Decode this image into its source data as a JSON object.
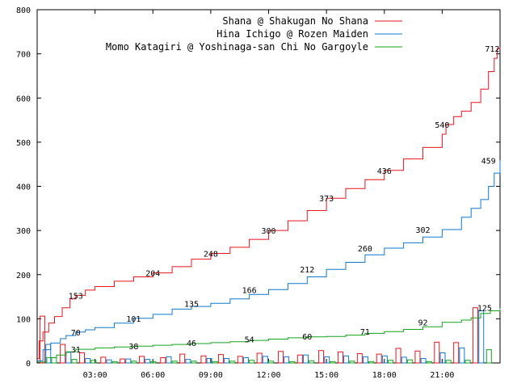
{
  "chart_data": {
    "type": "line",
    "title": "",
    "xlabel": "",
    "ylabel": "",
    "ylim": [
      0,
      800
    ],
    "xlim": [
      0,
      24
    ],
    "grid": false,
    "legend_position": "top-right",
    "yticks": [
      0,
      100,
      200,
      300,
      400,
      500,
      600,
      700,
      800
    ],
    "xticks": [
      {
        "x": 3,
        "label": "03:00"
      },
      {
        "x": 6,
        "label": "06:00"
      },
      {
        "x": 9,
        "label": "09:00"
      },
      {
        "x": 12,
        "label": "12:00"
      },
      {
        "x": 15,
        "label": "15:00"
      },
      {
        "x": 18,
        "label": "18:00"
      },
      {
        "x": 21,
        "label": "21:00"
      }
    ],
    "series": [
      {
        "name": "Shana @ Shakugan No Shana",
        "color": "#e8151c",
        "points": [
          [
            0,
            10
          ],
          [
            0.1,
            50
          ],
          [
            0.3,
            70
          ],
          [
            0.6,
            90
          ],
          [
            0.9,
            105
          ],
          [
            1.3,
            125
          ],
          [
            1.7,
            145
          ],
          [
            2,
            153
          ],
          [
            2.5,
            165
          ],
          [
            3,
            173
          ],
          [
            4,
            185
          ],
          [
            5,
            195
          ],
          [
            6,
            204
          ],
          [
            7,
            218
          ],
          [
            8,
            235
          ],
          [
            9,
            248
          ],
          [
            10,
            262
          ],
          [
            11,
            280
          ],
          [
            12,
            300
          ],
          [
            13,
            322
          ],
          [
            14,
            345
          ],
          [
            15,
            373
          ],
          [
            16,
            395
          ],
          [
            17,
            415
          ],
          [
            18,
            436
          ],
          [
            19,
            462
          ],
          [
            20,
            488
          ],
          [
            21,
            518
          ],
          [
            21.2,
            540
          ],
          [
            21.6,
            558
          ],
          [
            22,
            570
          ],
          [
            22.5,
            590
          ],
          [
            23,
            620
          ],
          [
            23.4,
            660
          ],
          [
            23.7,
            690
          ],
          [
            23.85,
            712
          ],
          [
            24,
            715
          ]
        ],
        "labels": [
          {
            "x": 2,
            "y": 153,
            "text": "153"
          },
          {
            "x": 6,
            "y": 204,
            "text": "204"
          },
          {
            "x": 9,
            "y": 248,
            "text": "248"
          },
          {
            "x": 12,
            "y": 300,
            "text": "300"
          },
          {
            "x": 15,
            "y": 373,
            "text": "373"
          },
          {
            "x": 18,
            "y": 436,
            "text": "436"
          },
          {
            "x": 21,
            "y": 540,
            "text": "540"
          },
          {
            "x": 23.6,
            "y": 712,
            "text": "712"
          }
        ]
      },
      {
        "name": "Hina Ichigo @ Rozen Maiden",
        "color": "#0f79d0",
        "points": [
          [
            0,
            5
          ],
          [
            0.3,
            30
          ],
          [
            0.7,
            45
          ],
          [
            1.2,
            55
          ],
          [
            1.5,
            62
          ],
          [
            2,
            70
          ],
          [
            2.5,
            75
          ],
          [
            3,
            80
          ],
          [
            4,
            90
          ],
          [
            5,
            101
          ],
          [
            6,
            110
          ],
          [
            7,
            122
          ],
          [
            8,
            128
          ],
          [
            9,
            135
          ],
          [
            10,
            145
          ],
          [
            11,
            155
          ],
          [
            12,
            166
          ],
          [
            13,
            180
          ],
          [
            14,
            195
          ],
          [
            15,
            212
          ],
          [
            16,
            228
          ],
          [
            17,
            245
          ],
          [
            18,
            260
          ],
          [
            19,
            272
          ],
          [
            20,
            285
          ],
          [
            21,
            302
          ],
          [
            22,
            330
          ],
          [
            22.5,
            350
          ],
          [
            23,
            370
          ],
          [
            23.4,
            400
          ],
          [
            23.7,
            430
          ],
          [
            24,
            459
          ]
        ],
        "labels": [
          {
            "x": 2,
            "y": 70,
            "text": "70"
          },
          {
            "x": 5,
            "y": 101,
            "text": "101"
          },
          {
            "x": 8,
            "y": 135,
            "text": "135"
          },
          {
            "x": 11,
            "y": 166,
            "text": "166"
          },
          {
            "x": 14,
            "y": 212,
            "text": "212"
          },
          {
            "x": 17,
            "y": 260,
            "text": "260"
          },
          {
            "x": 20,
            "y": 302,
            "text": "302"
          },
          {
            "x": 23.4,
            "y": 459,
            "text": "459"
          }
        ]
      },
      {
        "name": "Momo Katagiri @ Yoshinaga-san Chi No Gargoyle",
        "color": "#14a31c",
        "points": [
          [
            0,
            2
          ],
          [
            0.5,
            12
          ],
          [
            1,
            18
          ],
          [
            1.5,
            25
          ],
          [
            2,
            31
          ],
          [
            3,
            34
          ],
          [
            4,
            36
          ],
          [
            5,
            38
          ],
          [
            6,
            40
          ],
          [
            7,
            42
          ],
          [
            8,
            44
          ],
          [
            9,
            46
          ],
          [
            10,
            48
          ],
          [
            11,
            51
          ],
          [
            12,
            54
          ],
          [
            13,
            57
          ],
          [
            14,
            59
          ],
          [
            15,
            60
          ],
          [
            16,
            63
          ],
          [
            17,
            67
          ],
          [
            18,
            71
          ],
          [
            19,
            76
          ],
          [
            20,
            82
          ],
          [
            21,
            92
          ],
          [
            22,
            97
          ],
          [
            22.5,
            102
          ],
          [
            23,
            112
          ],
          [
            23.5,
            118
          ],
          [
            24,
            125
          ]
        ],
        "labels": [
          {
            "x": 2,
            "y": 31,
            "text": "31"
          },
          {
            "x": 5,
            "y": 38,
            "text": "38"
          },
          {
            "x": 8,
            "y": 46,
            "text": "46"
          },
          {
            "x": 11,
            "y": 54,
            "text": "54"
          },
          {
            "x": 14,
            "y": 60,
            "text": "60"
          },
          {
            "x": 17,
            "y": 71,
            "text": "71"
          },
          {
            "x": 20,
            "y": 92,
            "text": "92"
          },
          {
            "x": 23.2,
            "y": 125,
            "text": "125"
          }
        ]
      }
    ],
    "bars": {
      "red": [
        [
          0.15,
          106
        ],
        [
          1.2,
          42
        ],
        [
          2.2,
          23
        ],
        [
          3.3,
          13
        ],
        [
          4.3,
          9
        ],
        [
          5.3,
          15
        ],
        [
          6.4,
          12
        ],
        [
          7.4,
          20
        ],
        [
          8.5,
          16
        ],
        [
          9.4,
          19
        ],
        [
          10.4,
          15
        ],
        [
          11.4,
          22
        ],
        [
          12.5,
          26
        ],
        [
          13.5,
          18
        ],
        [
          14.6,
          28
        ],
        [
          15.6,
          25
        ],
        [
          16.6,
          21
        ],
        [
          17.6,
          20
        ],
        [
          18.6,
          33
        ],
        [
          19.6,
          27
        ],
        [
          20.6,
          47
        ],
        [
          21.6,
          46
        ],
        [
          22.6,
          125
        ]
      ],
      "blue": [
        [
          0.45,
          42
        ],
        [
          1.5,
          24
        ],
        [
          2.5,
          10
        ],
        [
          3.6,
          7
        ],
        [
          4.6,
          9
        ],
        [
          5.6,
          8
        ],
        [
          6.7,
          14
        ],
        [
          7.7,
          8
        ],
        [
          8.8,
          10
        ],
        [
          9.7,
          10
        ],
        [
          10.7,
          12
        ],
        [
          11.7,
          15
        ],
        [
          12.8,
          14
        ],
        [
          13.8,
          18
        ],
        [
          14.9,
          14
        ],
        [
          15.9,
          16
        ],
        [
          16.9,
          14
        ],
        [
          17.9,
          16
        ],
        [
          18.9,
          13
        ],
        [
          19.9,
          10
        ],
        [
          20.9,
          23
        ],
        [
          21.9,
          34
        ],
        [
          22.9,
          118
        ]
      ],
      "green": [
        [
          0.75,
          12
        ],
        [
          1.8,
          8
        ],
        [
          2.8,
          6
        ],
        [
          3.9,
          3
        ],
        [
          4.9,
          4
        ],
        [
          5.9,
          3
        ],
        [
          7.0,
          4
        ],
        [
          8.0,
          4
        ],
        [
          9.1,
          3
        ],
        [
          10.0,
          4
        ],
        [
          11.0,
          6
        ],
        [
          12.0,
          4
        ],
        [
          13.1,
          3
        ],
        [
          14.1,
          5
        ],
        [
          15.2,
          3
        ],
        [
          16.2,
          4
        ],
        [
          17.2,
          3
        ],
        [
          18.2,
          6
        ],
        [
          19.2,
          7
        ],
        [
          20.2,
          3
        ],
        [
          21.2,
          6
        ],
        [
          22.2,
          6
        ],
        [
          23.3,
          30
        ]
      ]
    }
  }
}
